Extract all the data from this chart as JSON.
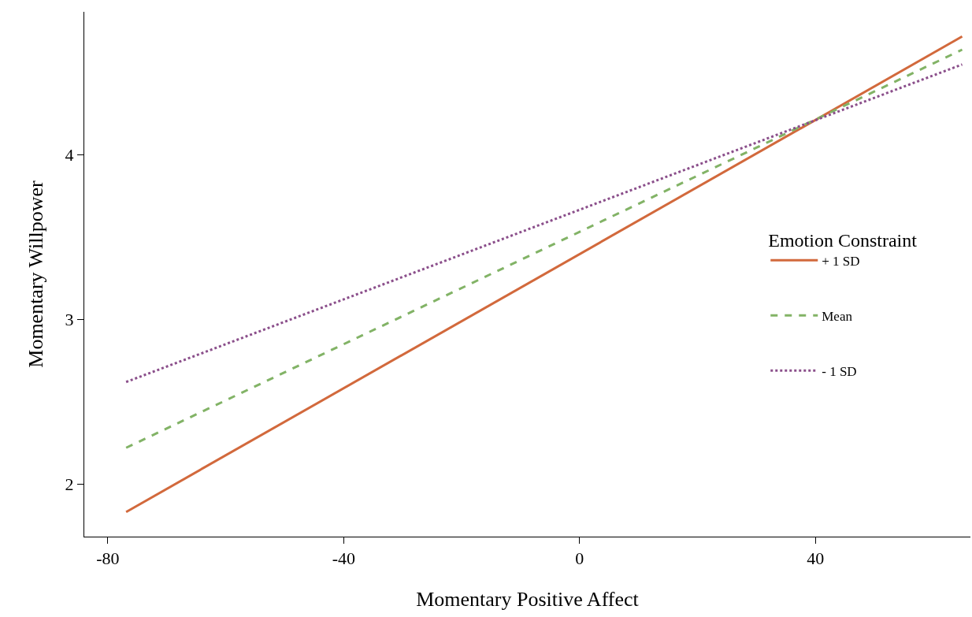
{
  "chart_data": {
    "type": "line",
    "xlabel": "Momentary Positive Affect",
    "ylabel": "Momentary Willpower",
    "legend_title": "Emotion Constraint",
    "x": [
      -76.9,
      64.9
    ],
    "series": [
      {
        "name": "+ 1 SD",
        "color": "#d2693c",
        "line_style": "solid",
        "values": [
          1.83,
          4.72
        ]
      },
      {
        "name": "Mean",
        "color": "#82b366",
        "line_style": "dashed",
        "values": [
          2.22,
          4.64
        ]
      },
      {
        "name": "- 1 SD",
        "color": "#8b4f8b",
        "line_style": "dotted",
        "values": [
          2.62,
          4.55
        ]
      }
    ],
    "xlim": [
      -84,
      66.3
    ],
    "xticks": [
      -80,
      -40,
      0,
      40
    ],
    "ylim": [
      1.68,
      4.87
    ],
    "yticks": [
      2,
      3,
      4
    ],
    "grid": false,
    "legend": "right",
    "marker": "none"
  }
}
